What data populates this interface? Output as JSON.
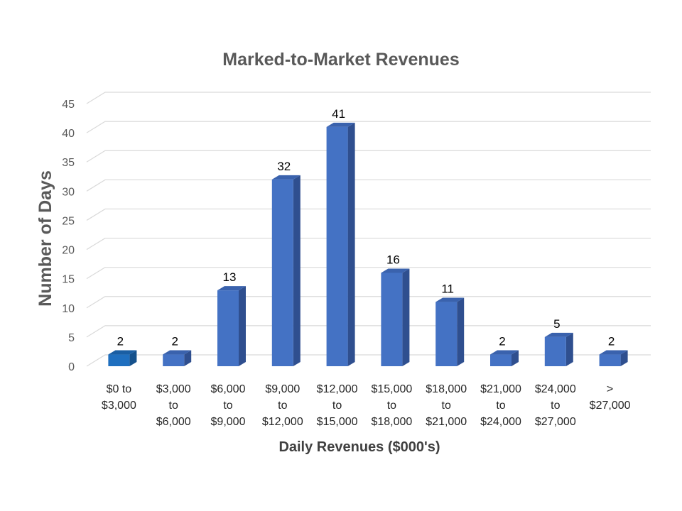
{
  "chart_data": {
    "type": "bar",
    "title": "Marked-to-Market Revenues",
    "xlabel": "Daily Revenues ($000's)",
    "ylabel": "Number of Days",
    "ylim": [
      0,
      45
    ],
    "yticks": [
      0,
      5,
      10,
      15,
      20,
      25,
      30,
      35,
      40,
      45
    ],
    "grid": true,
    "categories": [
      [
        "$0 to",
        "$3,000"
      ],
      [
        "$3,000",
        "to",
        "$6,000"
      ],
      [
        "$6,000",
        "to",
        "$9,000"
      ],
      [
        "$9,000",
        "to",
        "$12,000"
      ],
      [
        "$12,000",
        "to",
        "$15,000"
      ],
      [
        "$15,000",
        "to",
        "$18,000"
      ],
      [
        "$18,000",
        "to",
        "$21,000"
      ],
      [
        "$21,000",
        "to",
        "$24,000"
      ],
      [
        "$24,000",
        "to",
        "$27,000"
      ],
      [
        ">",
        "$27,000"
      ]
    ],
    "values": [
      2,
      2,
      13,
      32,
      41,
      16,
      11,
      2,
      5,
      2
    ],
    "data_labels": [
      "2",
      "2",
      "13",
      "32",
      "41",
      "16",
      "11",
      "2",
      "5",
      "2"
    ],
    "colors": {
      "bar_front": "#4472c4",
      "bar_side": "#2f4f8f",
      "bar_top": "#3a62ad",
      "first_bar_front": "#1f6fbf",
      "first_bar_side": "#15518c",
      "first_bar_top": "#1a5ea3"
    }
  }
}
